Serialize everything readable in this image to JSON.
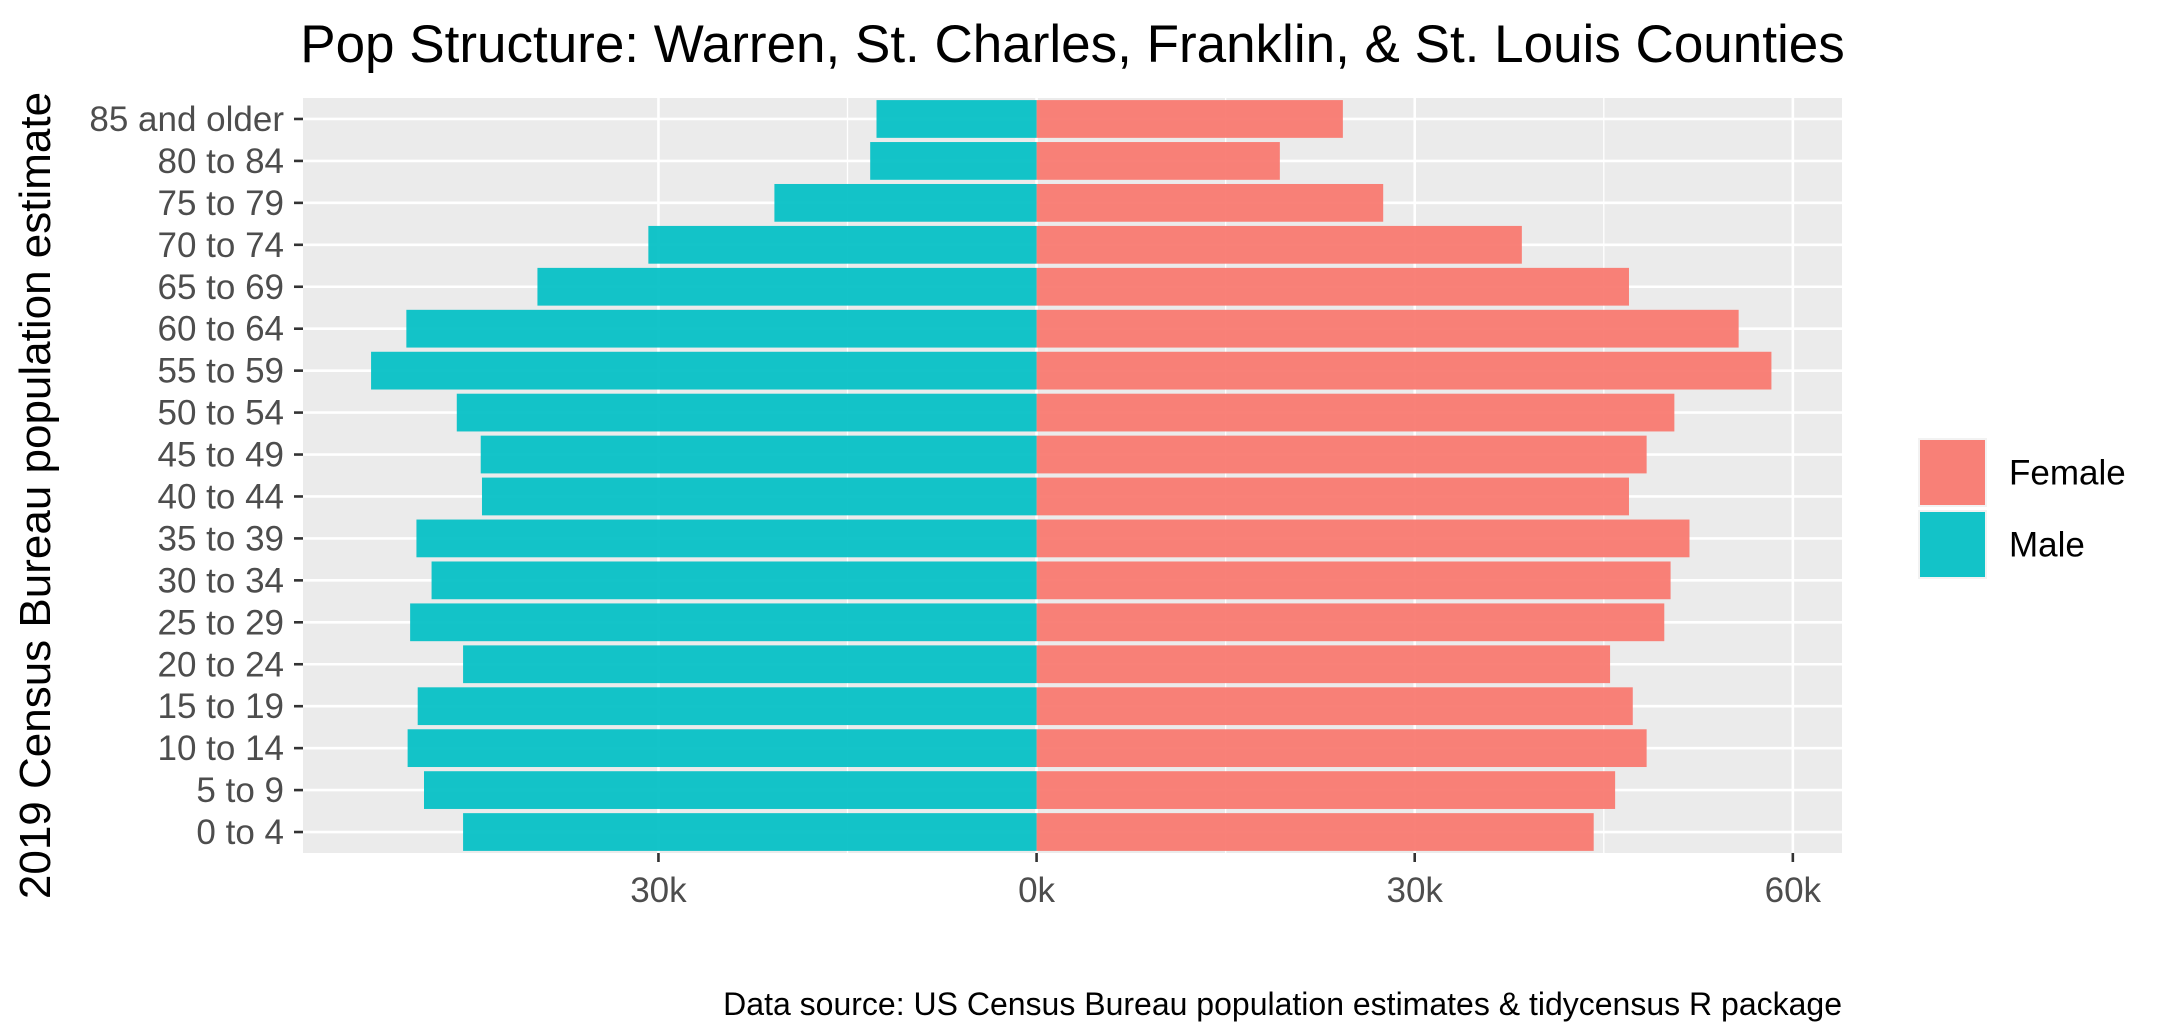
{
  "chart_data": {
    "type": "bar",
    "orientation": "horizontal",
    "title": "Pop Structure: Warren, St. Charles, Franklin, & St. Louis Counties",
    "ylabel": "2019 Census Bureau population estimate",
    "caption": "Data source: US Census Bureau population estimates & tidycensus R package",
    "categories": [
      "0 to 4",
      "5 to 9",
      "10 to 14",
      "15 to 19",
      "20 to 24",
      "25 to 29",
      "30 to 34",
      "35 to 39",
      "40 to 44",
      "45 to 49",
      "50 to 54",
      "55 to 59",
      "60 to 64",
      "65 to 69",
      "70 to 74",
      "75 to 79",
      "80 to 84",
      "85 and older"
    ],
    "xlim": [
      -58200,
      63900
    ],
    "x_ticks": [
      -30000,
      0,
      30000,
      60000
    ],
    "x_tick_labels": [
      "30k",
      "0k",
      "30k",
      "60k"
    ],
    "grid": true,
    "legend_position": "right",
    "series": [
      {
        "name": "Female",
        "color": "#F8766D",
        "values": [
          44200,
          45900,
          48400,
          47300,
          45500,
          49800,
          50300,
          51800,
          47000,
          48400,
          50600,
          58300,
          55700,
          47000,
          38500,
          27500,
          19300,
          24300
        ]
      },
      {
        "name": "Male",
        "color": "#00BFC4",
        "values": [
          -45500,
          -48600,
          -49900,
          -49100,
          -45500,
          -49700,
          -48000,
          -49200,
          -44000,
          -44100,
          -46000,
          -52800,
          -50000,
          -39600,
          -30800,
          -20800,
          -13200,
          -12700
        ]
      }
    ]
  }
}
